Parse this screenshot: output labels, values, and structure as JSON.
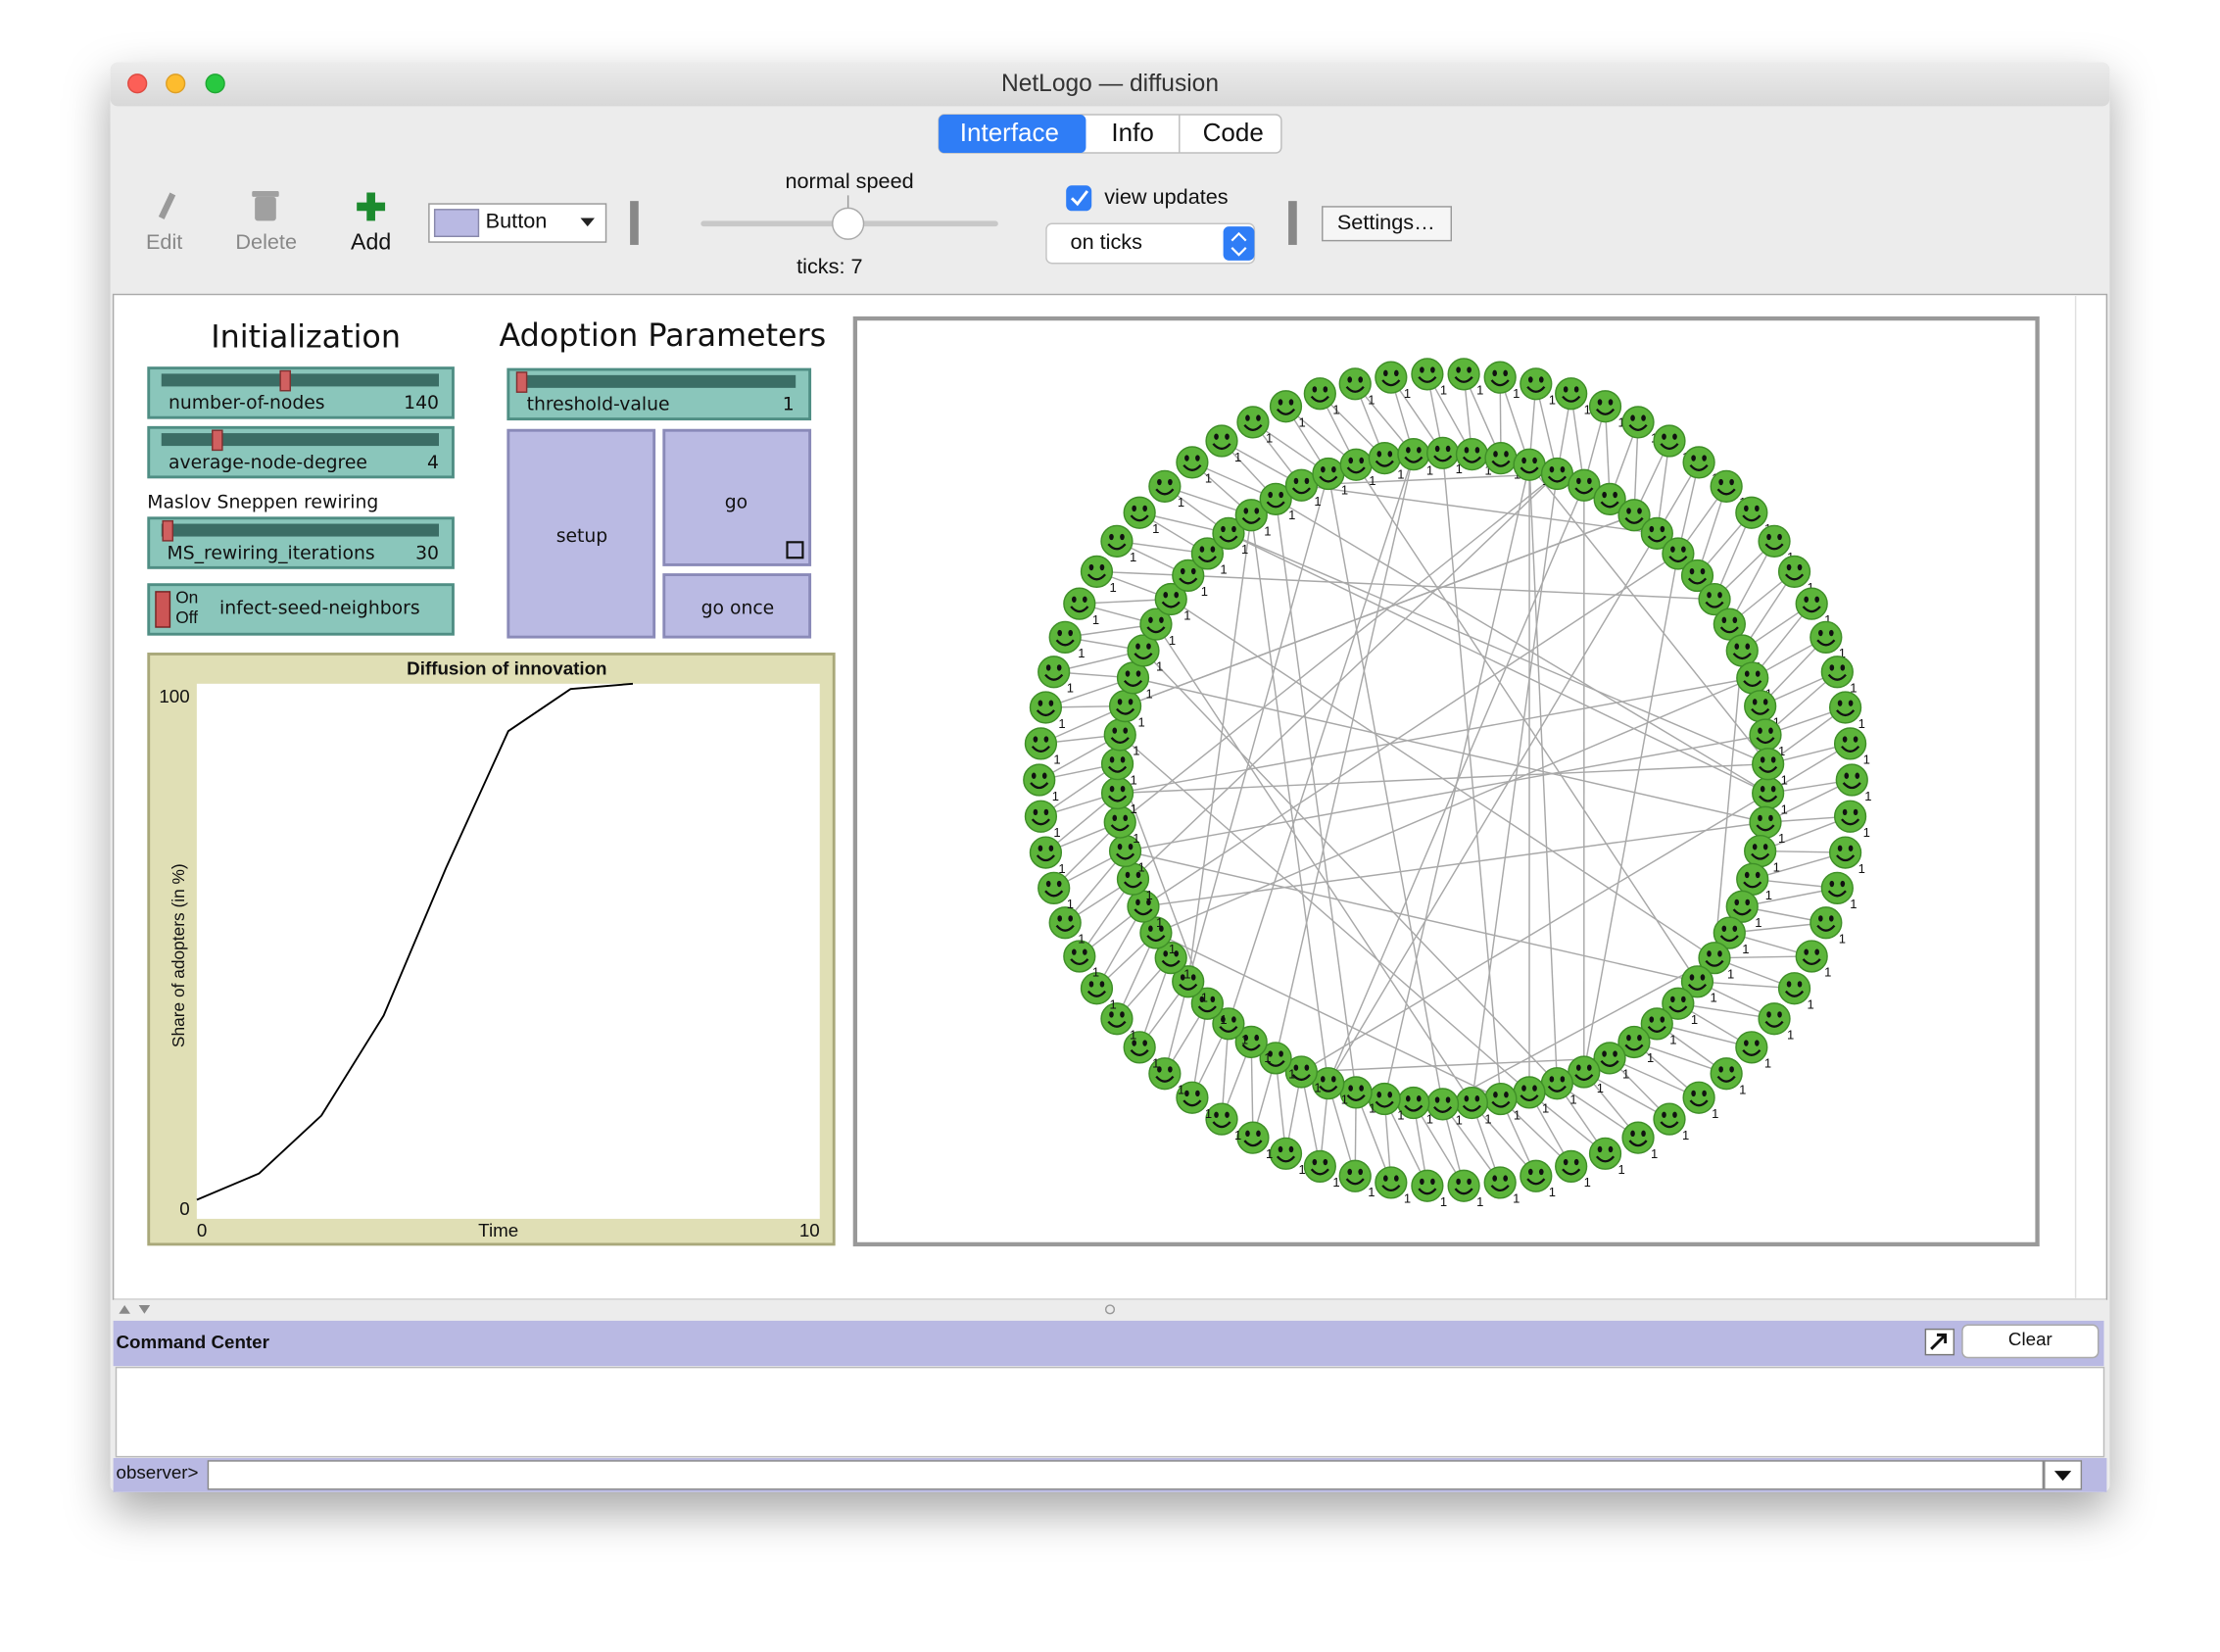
{
  "window": {
    "title": "NetLogo — diffusion"
  },
  "tabs": [
    "Interface",
    "Info",
    "Code"
  ],
  "toolbar": {
    "edit": "Edit",
    "delete": "Delete",
    "add": "Add",
    "widget_type": "Button",
    "speed_label": "normal speed",
    "ticks": "ticks: 7",
    "view_updates": "view updates",
    "update_mode": "on ticks",
    "settings": "Settings…"
  },
  "headings": {
    "initialization": "Initialization",
    "adoption": "Adoption Parameters",
    "rewiring": "Maslov Sneppen rewiring"
  },
  "sliders": [
    {
      "name": "number-of-nodes",
      "value": "140"
    },
    {
      "name": "average-node-degree",
      "value": "4"
    },
    {
      "name": "MS_rewiring_iterations",
      "value": "30"
    },
    {
      "name": "threshold-value",
      "value": "1"
    }
  ],
  "switch": {
    "name": "infect-seed-neighbors",
    "on": "On",
    "off": "Off"
  },
  "buttons": {
    "setup": "setup",
    "go": "go",
    "go_once": "go once"
  },
  "plot": {
    "title": "Diffusion of innovation",
    "x_label": "Time",
    "y_label": "Share of adopters (in %)",
    "xlim": [
      0,
      10
    ],
    "ylim": [
      0,
      100
    ],
    "xticks": [
      0,
      10
    ],
    "yticks": [
      0,
      100
    ],
    "x": [
      0,
      1,
      2,
      3,
      4,
      5,
      6,
      7
    ],
    "values": [
      2,
      7,
      18,
      37,
      65,
      91,
      99,
      100
    ],
    "color": "#000000"
  },
  "view": {
    "node_label": "1"
  },
  "command_center": {
    "title": "Command Center",
    "clear": "Clear",
    "prompt": "observer>"
  }
}
